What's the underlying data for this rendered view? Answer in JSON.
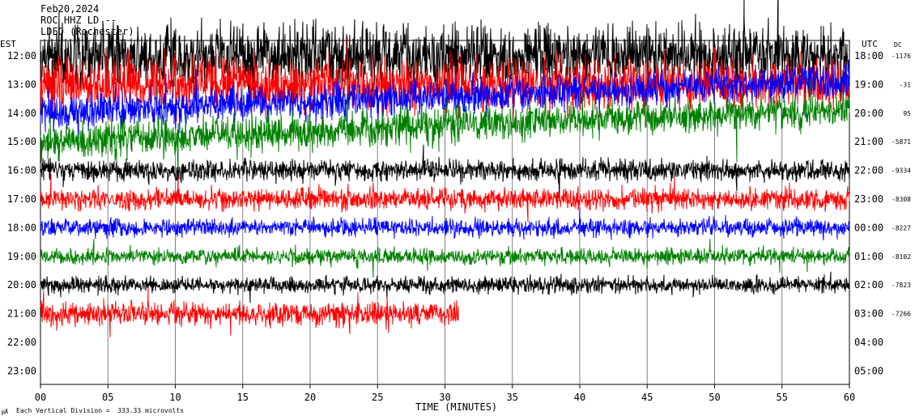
{
  "header": {
    "date": "Feb20,2024",
    "station": "ROC HHZ LD --",
    "agency": "LDEO (Rochester)"
  },
  "axes": {
    "left_title": "EST",
    "right_title": "UTC",
    "dc_title": "DC",
    "x_title": "TIME (MINUTES)",
    "footer": "Each Vertical Division =  333.33 microvolts",
    "footer_mark": "㎂"
  },
  "chart_data": {
    "type": "line",
    "title": "",
    "xlabel": "TIME (MINUTES)",
    "x_ticks": [
      "00",
      "05",
      "10",
      "15",
      "20",
      "25",
      "30",
      "35",
      "40",
      "45",
      "50",
      "55",
      "60"
    ],
    "xlim": [
      0,
      60
    ],
    "est_ticks": [
      "12:00",
      "13:00",
      "14:00",
      "15:00",
      "16:00",
      "17:00",
      "18:00",
      "19:00",
      "20:00",
      "21:00",
      "22:00",
      "23:00"
    ],
    "utc_ticks": [
      "18:00",
      "19:00",
      "20:00",
      "21:00",
      "22:00",
      "23:00",
      "00:00",
      "01:00",
      "02:00",
      "03:00",
      "04:00",
      "05:00"
    ],
    "dc_offsets": [
      "-1176",
      "-31",
      "95",
      "-5871",
      "-9334",
      "-8308",
      "-8227",
      "-8102",
      "-7823",
      "-7266"
    ],
    "trace_colors": [
      "#000000",
      "#ff0000",
      "#0000ff",
      "#008000"
    ],
    "traces": [
      {
        "row": 0,
        "color": "#000000",
        "amp": 3.5,
        "end": 60
      },
      {
        "row": 1,
        "color": "#ff0000",
        "amp": 3.0,
        "end": 60
      },
      {
        "row": 2,
        "color": "#0000ff",
        "amp": 2.0,
        "end": 60,
        "drift": -4.0
      },
      {
        "row": 3,
        "color": "#008000",
        "amp": 2.0,
        "end": 60,
        "drift": -4.0
      },
      {
        "row": 4,
        "color": "#000000",
        "amp": 1.2,
        "end": 60
      },
      {
        "row": 5,
        "color": "#ff0000",
        "amp": 1.2,
        "end": 60
      },
      {
        "row": 6,
        "color": "#0000ff",
        "amp": 1.0,
        "end": 60
      },
      {
        "row": 7,
        "color": "#008000",
        "amp": 0.9,
        "end": 60
      },
      {
        "row": 8,
        "color": "#000000",
        "amp": 0.9,
        "end": 60
      },
      {
        "row": 9,
        "color": "#ff0000",
        "amp": 1.3,
        "end": 31
      }
    ]
  }
}
